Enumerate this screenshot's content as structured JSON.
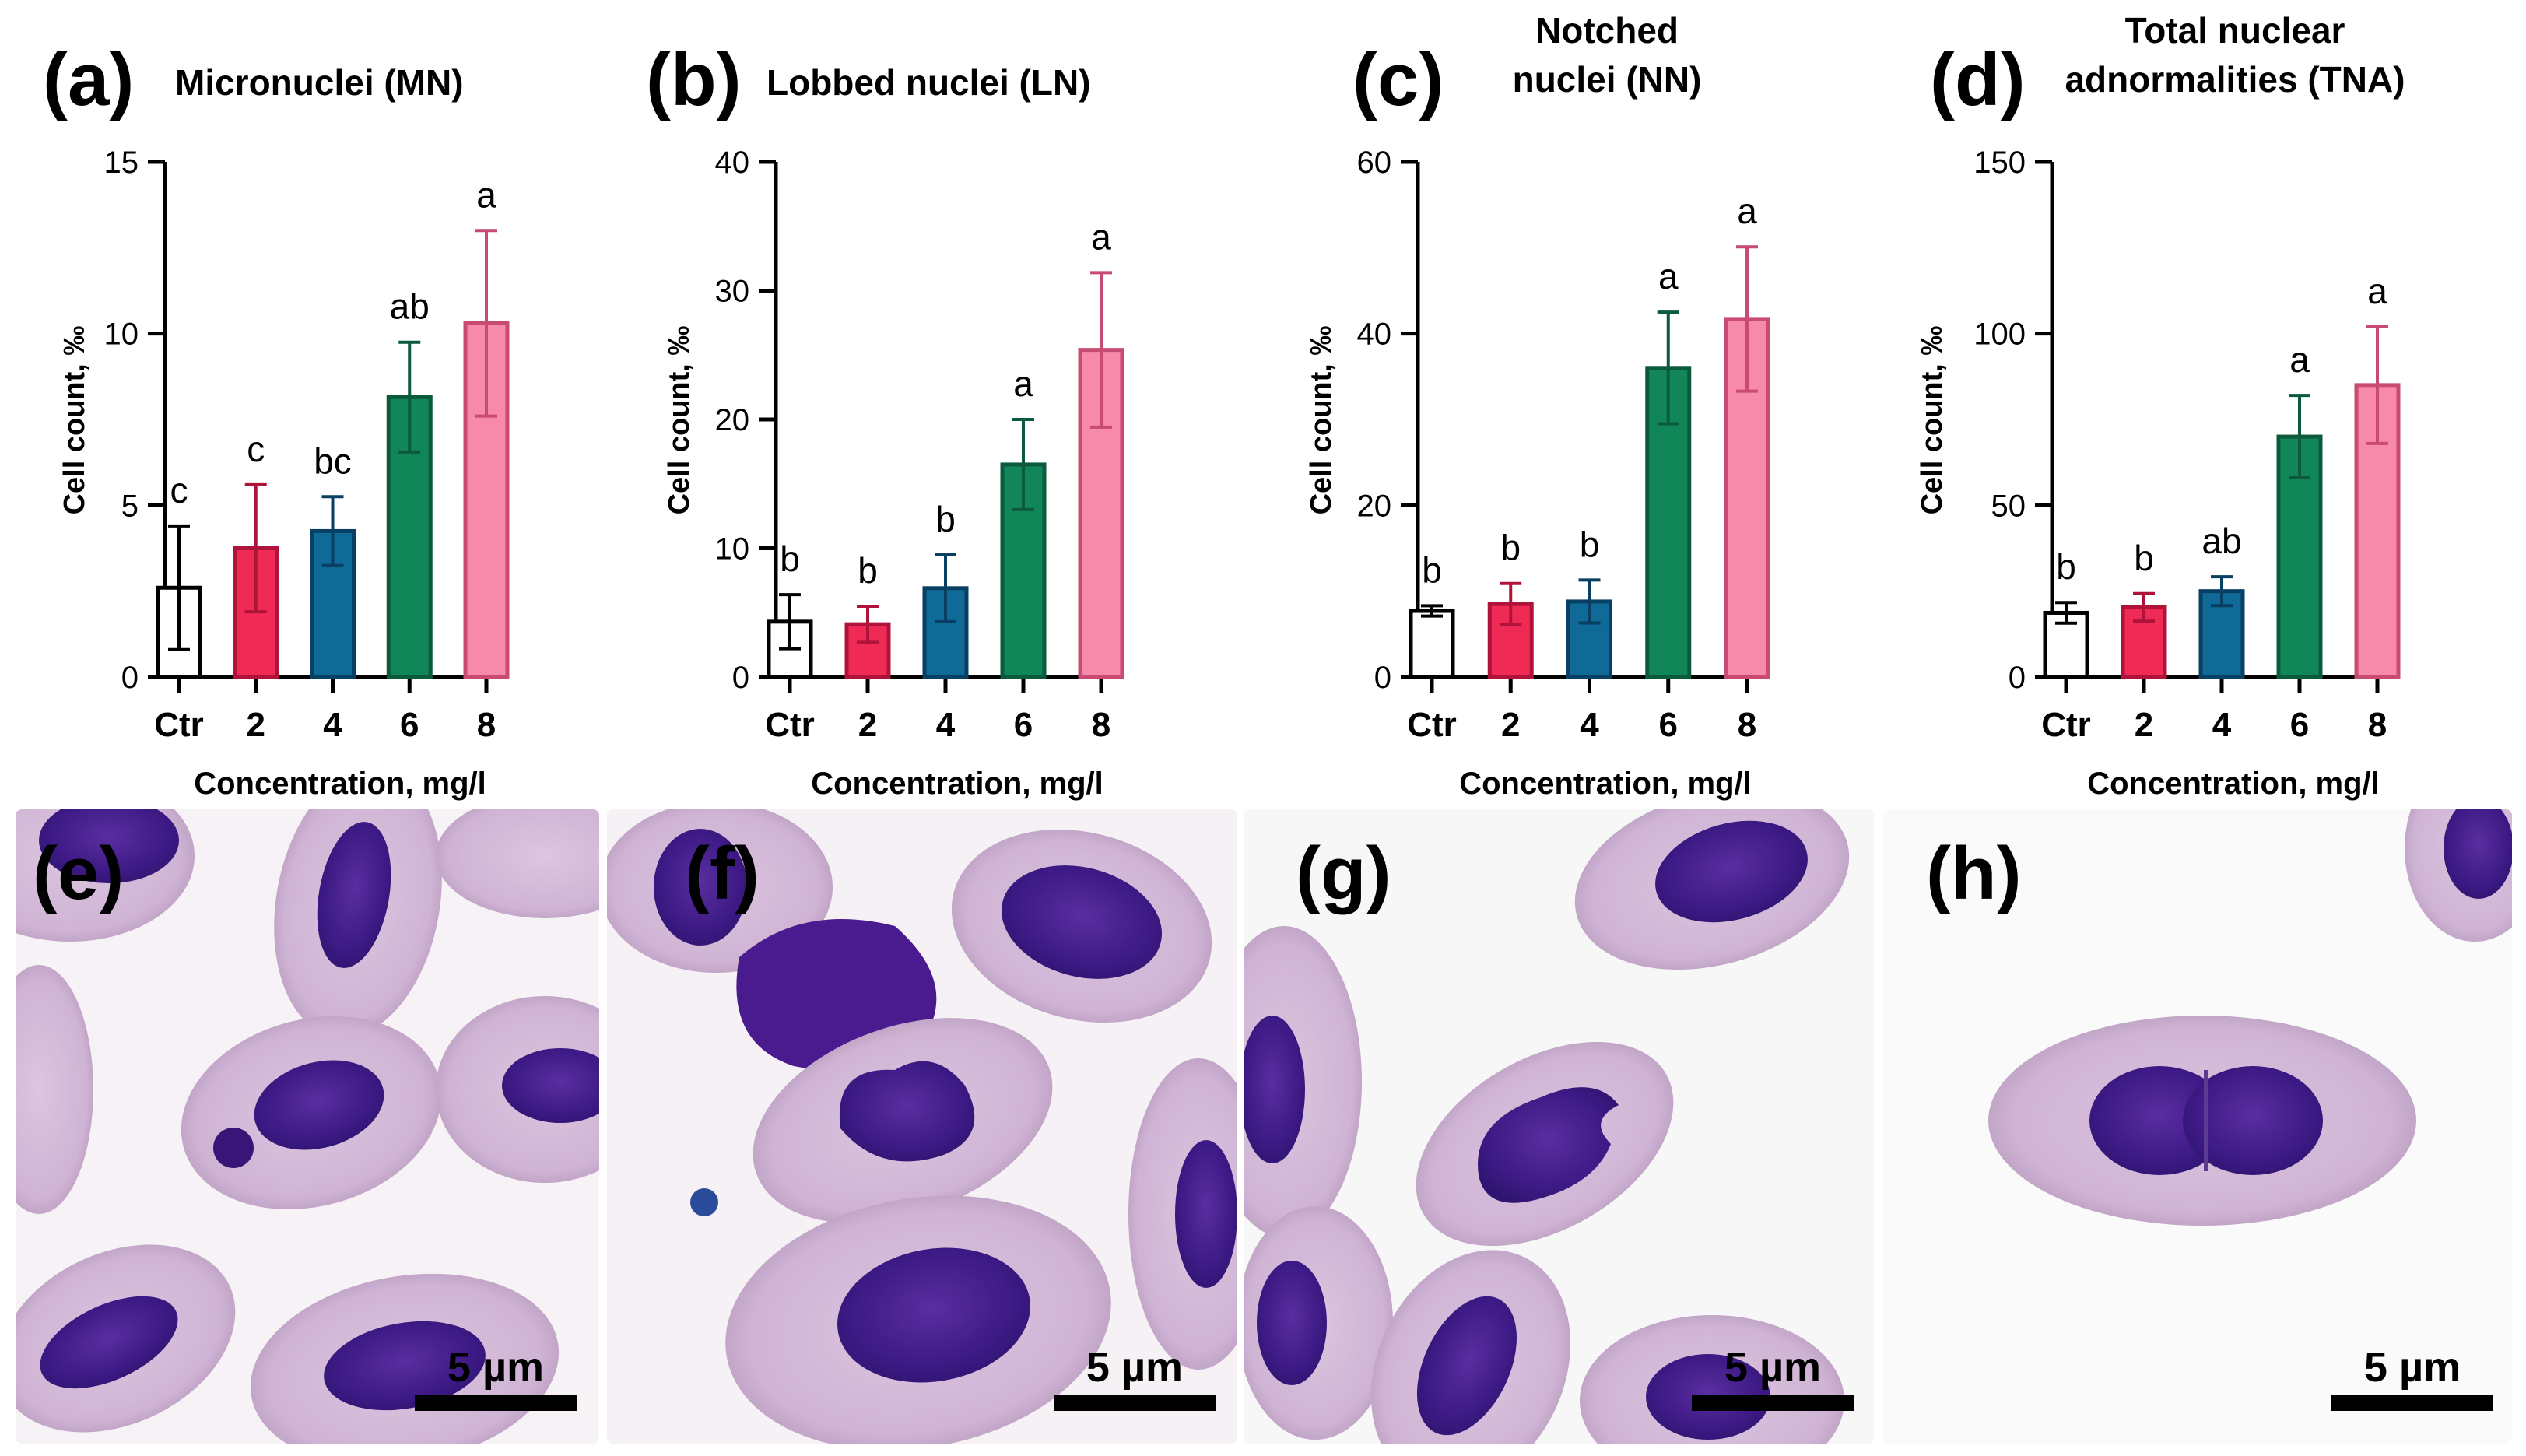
{
  "colors": {
    "ctr": "#ffffff",
    "c2": "#ee2a55",
    "c4": "#106a98",
    "c6": "#118659",
    "c8": "#f78aaa",
    "axis": "#000000"
  },
  "chart_data": [
    {
      "type": "bar",
      "panel_label": "(a)",
      "title": "Micronuclei (MN)",
      "xlabel": "Concentration, mg/l",
      "ylabel": "Cell count, ‰",
      "categories": [
        "Ctr",
        "2",
        "4",
        "6",
        "8"
      ],
      "values": [
        2.6,
        3.75,
        4.25,
        8.15,
        10.3
      ],
      "error": [
        1.8,
        1.85,
        1.0,
        1.6,
        2.7
      ],
      "letters": [
        "c",
        "c",
        "bc",
        "ab",
        "a"
      ],
      "ylim": [
        0,
        15
      ],
      "yticks": [
        0,
        5,
        10,
        15
      ]
    },
    {
      "type": "bar",
      "panel_label": "(b)",
      "title": "Lobbed nuclei (LN)",
      "xlabel": "Concentration, mg/l",
      "ylabel": "Cell count, ‰",
      "categories": [
        "Ctr",
        "2",
        "4",
        "6",
        "8"
      ],
      "values": [
        4.3,
        4.1,
        6.9,
        16.5,
        25.4
      ],
      "error": [
        2.1,
        1.4,
        2.6,
        3.5,
        6.0
      ],
      "letters": [
        "b",
        "b",
        "b",
        "a",
        "a"
      ],
      "ylim": [
        0,
        40
      ],
      "yticks": [
        0,
        10,
        20,
        30,
        40
      ]
    },
    {
      "type": "bar",
      "panel_label": "(c)",
      "title_lines": [
        "Notched",
        "nuclei (NN)"
      ],
      "xlabel": "Concentration, mg/l",
      "ylabel": "Cell count, ‰",
      "categories": [
        "Ctr",
        "2",
        "4",
        "6",
        "8"
      ],
      "values": [
        7.7,
        8.5,
        8.8,
        36.0,
        41.7
      ],
      "error": [
        0.6,
        2.4,
        2.5,
        6.5,
        8.4
      ],
      "letters": [
        "b",
        "b",
        "b",
        "a",
        "a"
      ],
      "ylim": [
        0,
        60
      ],
      "yticks": [
        0,
        20,
        40,
        60
      ]
    },
    {
      "type": "bar",
      "panel_label": "(d)",
      "title_lines": [
        "Total nuclear",
        "adnormalities (TNA)"
      ],
      "xlabel": "Concentration, mg/l",
      "ylabel": "Cell count, ‰",
      "categories": [
        "Ctr",
        "2",
        "4",
        "6",
        "8"
      ],
      "values": [
        18.7,
        20.3,
        25.0,
        70.0,
        85.0
      ],
      "error": [
        3.0,
        4.0,
        4.2,
        12.0,
        17.0
      ],
      "letters": [
        "b",
        "b",
        "ab",
        "a",
        "a"
      ],
      "ylim": [
        0,
        150
      ],
      "yticks": [
        0,
        50,
        100,
        150
      ]
    }
  ],
  "micrographs": [
    {
      "panel_label": "(e)",
      "scale_bar": "5 µm"
    },
    {
      "panel_label": "(f)",
      "scale_bar": "5 µm"
    },
    {
      "panel_label": "(g)",
      "scale_bar": "5 µm"
    },
    {
      "panel_label": "(h)",
      "scale_bar": "5 µm"
    }
  ]
}
